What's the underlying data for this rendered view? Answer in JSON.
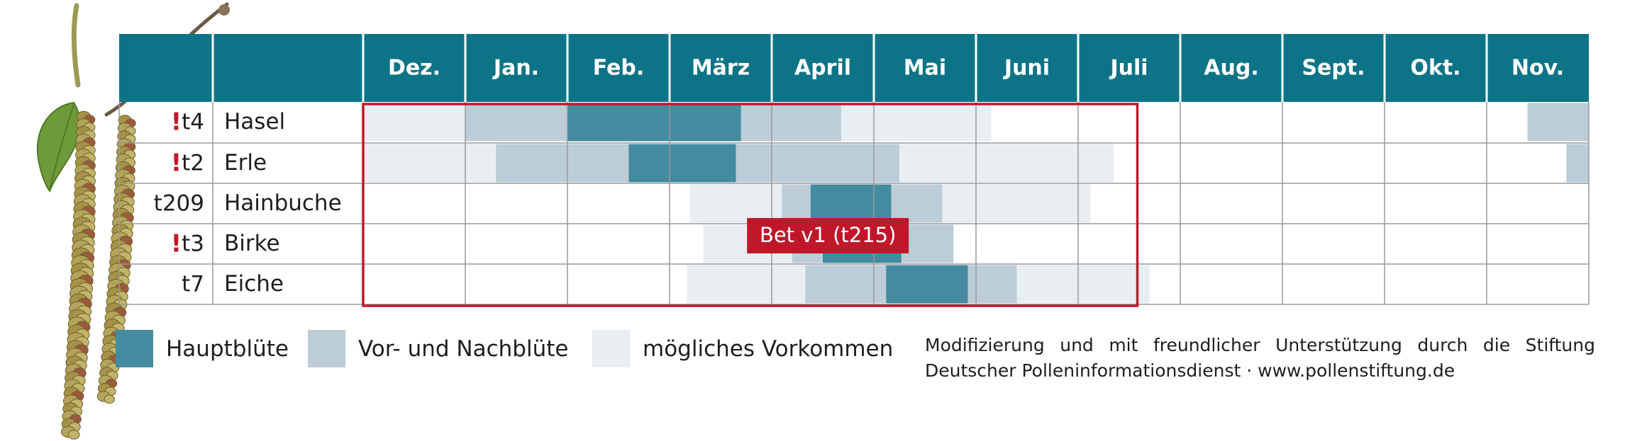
{
  "chart_data": {
    "type": "table",
    "title": "",
    "months": [
      "Dez.",
      "Jan.",
      "Feb.",
      "März",
      "April",
      "Mai",
      "Juni",
      "Juli",
      "Aug.",
      "Sept.",
      "Okt.",
      "Nov."
    ],
    "rows": [
      {
        "code": "t4",
        "allergen_flag": true,
        "name": "Hasel",
        "segments": [
          {
            "start": 0.0,
            "end": 1.0,
            "level": "possible"
          },
          {
            "start": 1.0,
            "end": 2.0,
            "level": "pre_post"
          },
          {
            "start": 2.0,
            "end": 3.7,
            "level": "main"
          },
          {
            "start": 3.7,
            "end": 4.68,
            "level": "pre_post"
          },
          {
            "start": 4.68,
            "end": 6.15,
            "level": "possible"
          },
          {
            "start": 11.4,
            "end": 12.0,
            "level": "pre_post"
          }
        ]
      },
      {
        "code": "t2",
        "allergen_flag": true,
        "name": "Erle",
        "segments": [
          {
            "start": 0.0,
            "end": 1.3,
            "level": "possible"
          },
          {
            "start": 1.3,
            "end": 2.6,
            "level": "pre_post"
          },
          {
            "start": 2.6,
            "end": 3.65,
            "level": "main"
          },
          {
            "start": 3.65,
            "end": 5.25,
            "level": "pre_post"
          },
          {
            "start": 5.25,
            "end": 7.35,
            "level": "possible"
          },
          {
            "start": 11.78,
            "end": 12.0,
            "level": "pre_post"
          }
        ]
      },
      {
        "code": "t209",
        "allergen_flag": false,
        "name": "Hainbuche",
        "segments": [
          {
            "start": 3.2,
            "end": 4.1,
            "level": "possible"
          },
          {
            "start": 4.1,
            "end": 4.38,
            "level": "pre_post"
          },
          {
            "start": 4.38,
            "end": 5.17,
            "level": "main"
          },
          {
            "start": 5.17,
            "end": 5.67,
            "level": "pre_post"
          },
          {
            "start": 5.67,
            "end": 7.12,
            "level": "possible"
          }
        ]
      },
      {
        "code": "t3",
        "allergen_flag": true,
        "name": "Birke",
        "segments": [
          {
            "start": 3.33,
            "end": 4.2,
            "level": "possible"
          },
          {
            "start": 4.2,
            "end": 4.5,
            "level": "pre_post"
          },
          {
            "start": 4.5,
            "end": 5.27,
            "level": "main"
          },
          {
            "start": 5.27,
            "end": 5.78,
            "level": "pre_post"
          }
        ]
      },
      {
        "code": "t7",
        "allergen_flag": false,
        "name": "Eiche",
        "segments": [
          {
            "start": 3.17,
            "end": 4.33,
            "level": "possible"
          },
          {
            "start": 4.33,
            "end": 5.12,
            "level": "pre_post"
          },
          {
            "start": 5.12,
            "end": 5.92,
            "level": "main"
          },
          {
            "start": 5.92,
            "end": 6.4,
            "level": "pre_post"
          },
          {
            "start": 6.4,
            "end": 7.7,
            "level": "possible"
          }
        ]
      }
    ],
    "highlight_box": {
      "start_month": 0.0,
      "end_month": 7.58,
      "first_row": 0,
      "last_row": 4
    },
    "annotation": {
      "text": "Bet v1 (t215)",
      "month": 4.55,
      "row": 3
    },
    "legend": [
      {
        "level": "main",
        "label": "Hauptblüte",
        "color": "#448b9f"
      },
      {
        "level": "pre_post",
        "label": "Vor- und Nachblüte",
        "color": "#bccdd8"
      },
      {
        "level": "possible",
        "label": "mögliches Vorkommen",
        "color": "#e8eef2"
      }
    ],
    "legend_position": "bottom-left",
    "grid": true
  },
  "colors": {
    "header": "#0d7487",
    "main": "#448b9f",
    "pre_post": "#bccdd8",
    "possible": "#e8eef2",
    "accent": "#c0182b",
    "grid": "#9a9a9a"
  },
  "credit": {
    "line1": "Modifizierung und mit freundlicher Unterstützung durch die Stiftung",
    "line2": "Deutscher Polleninformationsdienst · www.pollenstiftung.de"
  },
  "decoration": {
    "icon": "birch-catkin-illustration-icon"
  }
}
